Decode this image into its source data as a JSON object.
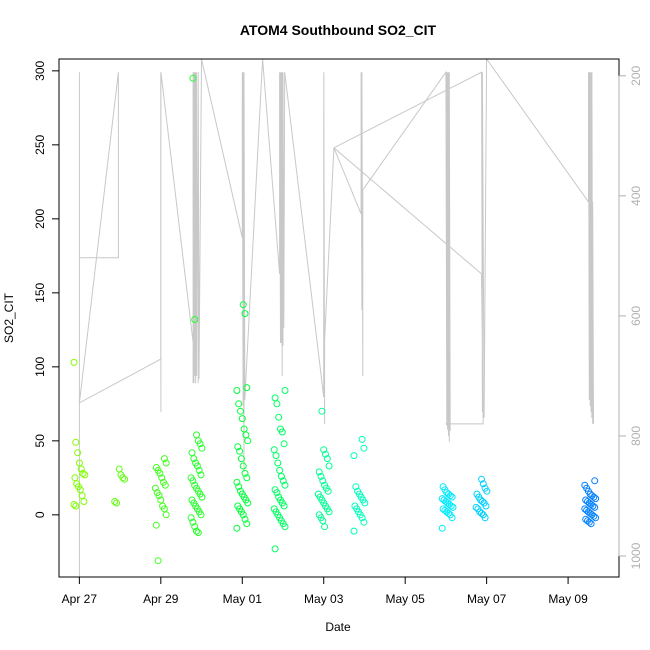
{
  "chart_data": {
    "type": "scatter",
    "title": "ATOM4 Southbound SO2_CIT",
    "xlabel": "Date",
    "ylabel": "SO2_CIT",
    "xlim": [
      "2016-04-26T12:00",
      "2016-05-10T06:00"
    ],
    "ylim": [
      -42,
      308
    ],
    "x_ticks": [
      {
        "date": "2016-04-27T00:00",
        "label": "Apr 27"
      },
      {
        "date": "2016-04-29T00:00",
        "label": "Apr 29"
      },
      {
        "date": "2016-05-01T00:00",
        "label": "May 01"
      },
      {
        "date": "2016-05-03T00:00",
        "label": "May 03"
      },
      {
        "date": "2016-05-05T00:00",
        "label": "May 05"
      },
      {
        "date": "2016-05-07T00:00",
        "label": "May 07"
      },
      {
        "date": "2016-05-09T00:00",
        "label": "May 09"
      }
    ],
    "y_ticks": [
      0,
      50,
      100,
      150,
      200,
      250,
      300
    ],
    "secondary_axis": {
      "side": "right",
      "reversed": true,
      "range": [
        172,
        1035
      ],
      "ticks": [
        200,
        400,
        600,
        800,
        1000
      ],
      "color": "#b0b0b0"
    },
    "grid": false,
    "legend": "none",
    "point_color_scale": [
      "#7fff00",
      "#00ff40",
      "#00ffff",
      "#0080ff"
    ],
    "clusters": [
      {
        "time": "2016-04-27T00:00",
        "values": [
          103,
          49,
          42,
          35,
          31,
          28,
          27,
          25,
          21,
          19,
          17,
          13,
          9,
          7,
          6
        ]
      },
      {
        "time": "2016-04-28T00:00",
        "values": [
          31,
          27,
          25,
          24,
          9,
          8
        ]
      },
      {
        "time": "2016-04-29T00:00",
        "values": [
          38,
          35,
          32,
          30,
          28,
          25,
          22,
          20,
          18,
          15,
          13,
          10,
          6,
          4,
          0,
          -7,
          -31
        ]
      },
      {
        "time": "2016-04-29T21:00",
        "values": [
          295,
          132,
          54,
          50,
          48,
          45,
          42,
          38,
          35,
          33,
          30,
          27,
          25,
          23,
          20,
          18,
          16,
          14,
          12,
          10,
          8,
          6,
          4,
          2,
          0,
          -2,
          -5,
          -8,
          -11,
          -12
        ]
      },
      {
        "time": "2016-05-01T00:00",
        "values": [
          142,
          136,
          86,
          84,
          75,
          70,
          65,
          58,
          54,
          50,
          46,
          43,
          38,
          33,
          28,
          25,
          22,
          19,
          16,
          14,
          12,
          10,
          8,
          6,
          4,
          2,
          0,
          -3,
          -6,
          -9
        ]
      },
      {
        "time": "2016-05-01T22:00",
        "values": [
          84,
          79,
          75,
          66,
          58,
          56,
          48,
          44,
          40,
          35,
          30,
          26,
          23,
          20,
          17,
          15,
          12,
          10,
          8,
          6,
          4,
          2,
          0,
          -2,
          -4,
          -6,
          -8,
          -23
        ]
      },
      {
        "time": "2016-05-03T00:00",
        "values": [
          70,
          44,
          41,
          38,
          33,
          29,
          26,
          23,
          20,
          18,
          16,
          14,
          12,
          10,
          8,
          6,
          4,
          2,
          0,
          -2,
          -4,
          -8
        ]
      },
      {
        "time": "2016-05-03T21:00",
        "values": [
          51,
          45,
          40,
          19,
          16,
          14,
          12,
          10,
          8,
          6,
          4,
          2,
          0,
          -2,
          -5,
          -11
        ]
      },
      {
        "time": "2016-05-06T01:00",
        "values": [
          19,
          17,
          15,
          14,
          13,
          12,
          11,
          10,
          9,
          8,
          7,
          6,
          5,
          4,
          3,
          2,
          1,
          0,
          -2,
          -9
        ]
      },
      {
        "time": "2016-05-06T21:00",
        "values": [
          24,
          21,
          18,
          16,
          14,
          12,
          10,
          9,
          8,
          6,
          5,
          4,
          2,
          1,
          0,
          -2
        ]
      },
      {
        "time": "2016-05-09T13:00",
        "values": [
          23,
          20,
          18,
          16,
          14,
          13,
          12,
          11,
          10,
          9,
          8,
          7,
          6,
          5,
          4,
          3,
          2,
          1,
          0,
          -1,
          -2,
          -3,
          -4,
          -5,
          -6
        ]
      }
    ],
    "altitude_trace": [
      [
        "2016-04-27T00:00",
        194
      ],
      [
        "2016-04-27T00:01",
        1035
      ],
      [
        "2016-04-27T00:02",
        503
      ],
      [
        "2016-04-27T23:00",
        503
      ],
      [
        "2016-04-27T23:01",
        194
      ],
      [
        "2016-04-27T00:03",
        745
      ],
      [
        "2016-04-29T00:00",
        672
      ],
      [
        "2016-04-29T00:01",
        194
      ],
      [
        "2016-04-29T00:02",
        760
      ],
      [
        "2016-04-29T00:03",
        194
      ],
      [
        "2016-04-29T19:00",
        644
      ],
      [
        "2016-04-29T19:01",
        194
      ],
      [
        "2016-04-29T19:02",
        712
      ],
      [
        "2016-04-29T19:03",
        194
      ],
      [
        "2016-04-29T19:30",
        712
      ],
      [
        "2016-04-29T19:31",
        194
      ],
      [
        "2016-04-29T20:00",
        700
      ],
      [
        "2016-04-29T20:01",
        194
      ],
      [
        "2016-04-29T20:30",
        712
      ],
      [
        "2016-04-29T20:31",
        194
      ],
      [
        "2016-04-29T21:00",
        700
      ],
      [
        "2016-04-29T21:01",
        194
      ],
      [
        "2016-04-29T22:00",
        712
      ],
      [
        "2016-04-29T22:01",
        194
      ],
      [
        "2016-04-29T22:30",
        705
      ],
      [
        "2016-04-30T00:00",
        172
      ],
      [
        "2016-05-01T00:00",
        470
      ],
      [
        "2016-05-01T00:01",
        194
      ],
      [
        "2016-05-01T00:30",
        750
      ],
      [
        "2016-05-01T00:31",
        194
      ],
      [
        "2016-05-01T01:00",
        860
      ],
      [
        "2016-05-01T01:01",
        194
      ],
      [
        "2016-05-01T01:30",
        740
      ],
      [
        "2016-05-01T12:00",
        172
      ],
      [
        "2016-05-01T22:00",
        530
      ],
      [
        "2016-05-01T22:01",
        194
      ],
      [
        "2016-05-01T22:30",
        645
      ],
      [
        "2016-05-01T22:31",
        194
      ],
      [
        "2016-05-01T23:00",
        645
      ],
      [
        "2016-05-01T23:01",
        194
      ],
      [
        "2016-05-01T23:30",
        700
      ],
      [
        "2016-05-01T23:31",
        194
      ],
      [
        "2016-05-02T00:00",
        650
      ],
      [
        "2016-05-02T00:01",
        194
      ],
      [
        "2016-05-02T00:30",
        620
      ],
      [
        "2016-05-02T01:00",
        194
      ],
      [
        "2016-05-03T00:00",
        735
      ],
      [
        "2016-05-03T00:01",
        194
      ],
      [
        "2016-05-03T00:30",
        780
      ],
      [
        "2016-05-03T00:31",
        640
      ],
      [
        "2016-05-03T06:00",
        320
      ],
      [
        "2016-05-03T22:00",
        430
      ],
      [
        "2016-05-03T22:01",
        194
      ],
      [
        "2016-05-03T22:30",
        590
      ],
      [
        "2016-05-03T22:31",
        194
      ],
      [
        "2016-05-03T23:00",
        700
      ],
      [
        "2016-05-03T23:01",
        390
      ],
      [
        "2016-05-06T00:00",
        194
      ],
      [
        "2016-05-06T00:30",
        780
      ],
      [
        "2016-05-06T00:31",
        194
      ],
      [
        "2016-05-06T01:00",
        790
      ],
      [
        "2016-05-06T01:01",
        194
      ],
      [
        "2016-05-06T01:30",
        800
      ],
      [
        "2016-05-06T01:31",
        194
      ],
      [
        "2016-05-06T02:00",
        810
      ],
      [
        "2016-05-06T02:01",
        194
      ],
      [
        "2016-05-06T02:30",
        790
      ],
      [
        "2016-05-06T00:10",
        780
      ],
      [
        "2016-05-06T22:00",
        780
      ],
      [
        "2016-05-06T21:00",
        530
      ],
      [
        "2016-05-03T06:01",
        320
      ],
      [
        "2016-05-06T21:01",
        194
      ],
      [
        "2016-05-06T21:30",
        760
      ],
      [
        "2016-05-06T21:31",
        194
      ],
      [
        "2016-05-06T22:30",
        770
      ],
      [
        "2016-05-07T00:00",
        172
      ],
      [
        "2016-05-09T12:00",
        410
      ],
      [
        "2016-05-09T12:01",
        194
      ],
      [
        "2016-05-09T12:30",
        740
      ],
      [
        "2016-05-09T12:31",
        194
      ],
      [
        "2016-05-09T13:00",
        750
      ],
      [
        "2016-05-09T13:01",
        194
      ],
      [
        "2016-05-09T13:30",
        760
      ],
      [
        "2016-05-09T13:31",
        194
      ],
      [
        "2016-05-09T14:00",
        770
      ],
      [
        "2016-05-09T14:01",
        194
      ],
      [
        "2016-05-09T14:30",
        780
      ],
      [
        "2016-05-09T14:31",
        410
      ],
      [
        "2016-05-09T15:00",
        780
      ]
    ]
  }
}
